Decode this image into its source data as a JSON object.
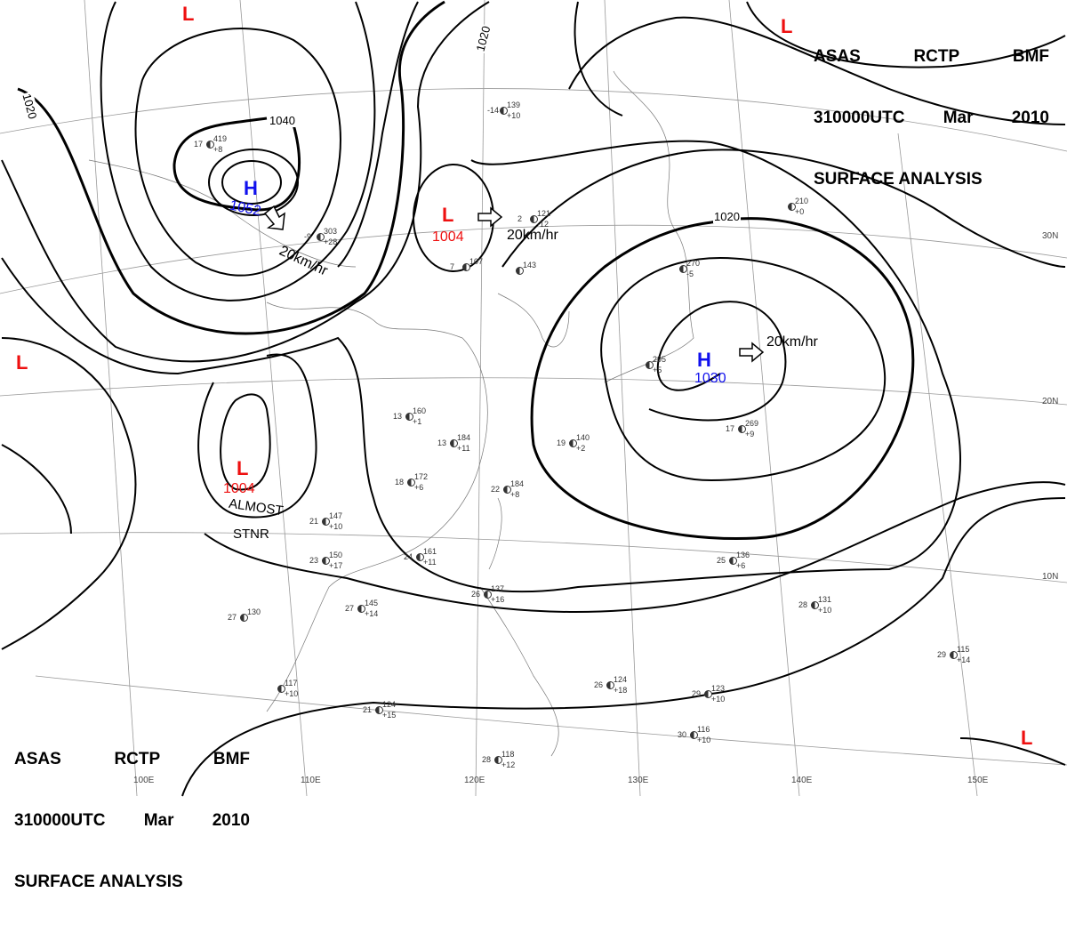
{
  "header": {
    "line1": [
      "ASAS",
      "RCTP",
      "BMF"
    ],
    "line2": [
      "310000UTC",
      "Mar",
      "2010"
    ],
    "line3": "SURFACE ANALYSIS"
  },
  "colors": {
    "high": "#1010ee",
    "low": "#ee1010",
    "isobar": "#000000",
    "grid": "#888888"
  },
  "systems": [
    {
      "type": "H",
      "pressure": "1052",
      "motion": "20km/hr"
    },
    {
      "type": "L",
      "pressure": "1004",
      "motion": "20km/hr"
    },
    {
      "type": "H",
      "pressure": "1030",
      "motion": "20km/hr"
    },
    {
      "type": "L",
      "pressure": "1004",
      "motion": "ALMOST STNR",
      "motion_lines": [
        "ALMOST",
        "STNR"
      ]
    },
    {
      "type": "L"
    },
    {
      "type": "L"
    },
    {
      "type": "L"
    },
    {
      "type": "L"
    }
  ],
  "isobar_labels": [
    "1040",
    "1020",
    "1020",
    "1020"
  ],
  "grid_labels": {
    "latitudes": [
      "30N",
      "20N",
      "10N"
    ],
    "longitudes": [
      "100E",
      "110E",
      "120E",
      "130E",
      "140E",
      "150E"
    ]
  },
  "stations": [
    {
      "t": "17",
      "p": "419",
      "tend": "+8"
    },
    {
      "t": "-9",
      "p": "303",
      "tend": "+28"
    },
    {
      "t": "-14",
      "p": "139",
      "tend": "+10"
    },
    {
      "t": "2",
      "p": "121",
      "tend": "-12"
    },
    {
      "t": "7",
      "p": "107",
      "tend": ""
    },
    {
      "t": "",
      "p": "143",
      "tend": ""
    },
    {
      "t": "",
      "p": "270",
      "tend": "-5"
    },
    {
      "t": "",
      "p": "295",
      "tend": "+5"
    },
    {
      "t": "",
      "p": "210",
      "tend": "+0"
    },
    {
      "t": "13",
      "p": "160",
      "tend": "+1"
    },
    {
      "t": "13",
      "p": "184",
      "tend": "+11"
    },
    {
      "t": "18",
      "p": "172",
      "tend": "+6"
    },
    {
      "t": "22",
      "p": "184",
      "tend": "+8"
    },
    {
      "t": "19",
      "p": "140",
      "tend": "+2"
    },
    {
      "t": "21",
      "p": "147",
      "tend": "+10"
    },
    {
      "t": "23",
      "p": "150",
      "tend": "+17"
    },
    {
      "t": "24",
      "p": "161",
      "tend": "+11"
    },
    {
      "t": "27",
      "p": "145",
      "tend": "+14"
    },
    {
      "t": "27",
      "p": "130",
      "tend": ""
    },
    {
      "t": "17",
      "p": "269",
      "tend": "+9"
    },
    {
      "t": "25",
      "p": "136",
      "tend": "+6"
    },
    {
      "t": "28",
      "p": "131",
      "tend": "+10"
    },
    {
      "t": "29",
      "p": "115",
      "tend": "+14"
    },
    {
      "t": "29",
      "p": "123",
      "tend": "+10"
    },
    {
      "t": "30",
      "p": "116",
      "tend": "+10"
    },
    {
      "t": "28",
      "p": "118",
      "tend": "+12"
    },
    {
      "t": "21",
      "p": "124",
      "tend": "+15"
    },
    {
      "t": "26",
      "p": "124",
      "tend": "+18"
    },
    {
      "t": "",
      "p": "117",
      "tend": "+10"
    },
    {
      "t": "26",
      "p": "137",
      "tend": "+16"
    }
  ]
}
